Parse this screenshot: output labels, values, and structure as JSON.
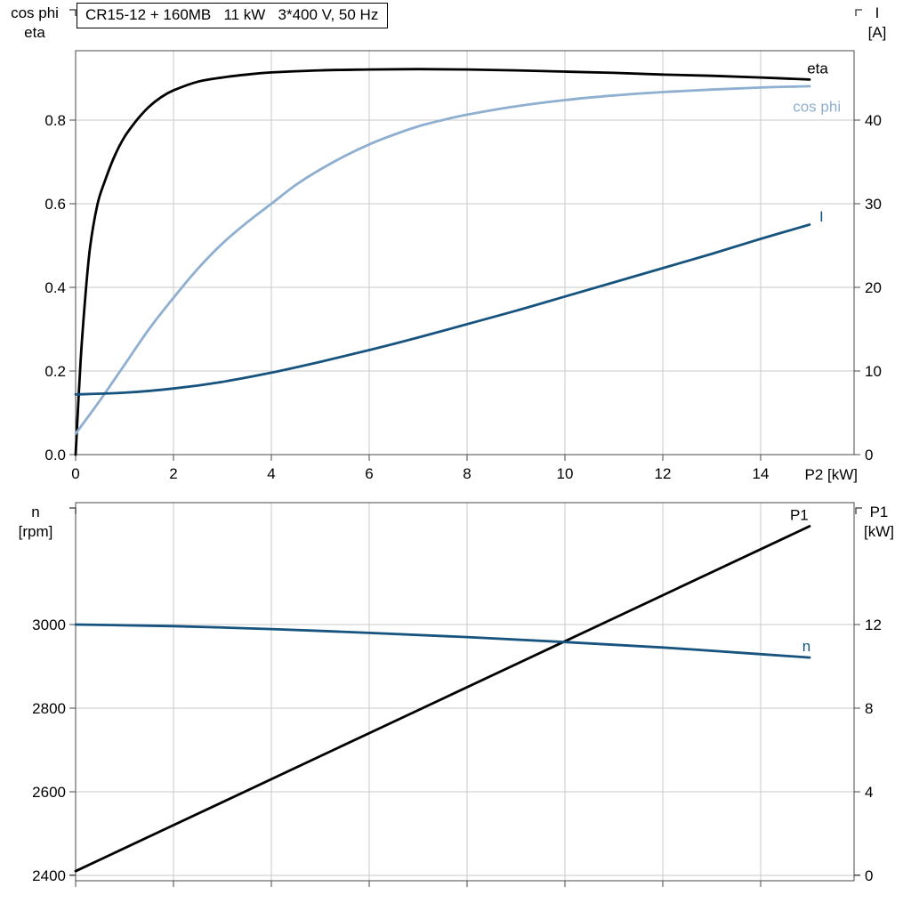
{
  "colors": {
    "black": "#000000",
    "lightblue": "#8fafd0",
    "darkblue": "#16537e",
    "grid": "#c9c9c9",
    "frame": "#4a4a4a",
    "text": "#000000",
    "background": "#ffffff"
  },
  "chart_data": [
    {
      "type": "line",
      "title": "CR15-12 + 160MB   11 kW   3*400 V, 50 Hz",
      "xlabel": "P2 [kW]",
      "xlim": [
        0,
        15.91
      ],
      "show_x_tick_labels": true,
      "x_ticks": [
        {
          "v": 0,
          "label": "0"
        },
        {
          "v": 2,
          "label": "2"
        },
        {
          "v": 4,
          "label": "4"
        },
        {
          "v": 6,
          "label": "6"
        },
        {
          "v": 8,
          "label": "8"
        },
        {
          "v": 10,
          "label": "10"
        },
        {
          "v": 12,
          "label": "12"
        },
        {
          "v": 14,
          "label": "14"
        }
      ],
      "axes": {
        "left": {
          "title_lines": [
            "cos phi",
            "eta"
          ],
          "lim": [
            0,
            0.966
          ],
          "ticks": [
            {
              "v": 0,
              "label": "0.0"
            },
            {
              "v": 0.2,
              "label": "0.2"
            },
            {
              "v": 0.4,
              "label": "0.4"
            },
            {
              "v": 0.6,
              "label": "0.6"
            },
            {
              "v": 0.8,
              "label": "0.8"
            }
          ]
        },
        "right": {
          "title_lines": [
            "I",
            "[A]"
          ],
          "lim": [
            0,
            48.3
          ],
          "ticks": [
            {
              "v": 0,
              "label": "0"
            },
            {
              "v": 10,
              "label": "10"
            },
            {
              "v": 20,
              "label": "20"
            },
            {
              "v": 30,
              "label": "30"
            },
            {
              "v": 40,
              "label": "40"
            }
          ]
        }
      },
      "series": [
        {
          "name": "eta",
          "axis": "left",
          "color": "black",
          "x": [
            0,
            0.1,
            0.2,
            0.3,
            0.45,
            0.6,
            0.8,
            1,
            1.25,
            1.5,
            1.75,
            2,
            2.5,
            3,
            3.5,
            4,
            5,
            6,
            7,
            8,
            9,
            10,
            11,
            12,
            13,
            14,
            15
          ],
          "y": [
            0,
            0.22,
            0.38,
            0.5,
            0.6,
            0.655,
            0.715,
            0.76,
            0.8,
            0.832,
            0.855,
            0.871,
            0.892,
            0.902,
            0.909,
            0.914,
            0.919,
            0.921,
            0.922,
            0.921,
            0.919,
            0.916,
            0.913,
            0.909,
            0.906,
            0.902,
            0.897
          ],
          "label": {
            "text": "eta",
            "x": 14.95,
            "y": 0.912
          }
        },
        {
          "name": "cos phi",
          "axis": "left",
          "color": "lightblue",
          "x": [
            0,
            0.5,
            1,
            1.5,
            2,
            2.5,
            3,
            3.5,
            4,
            4.5,
            5,
            5.5,
            6,
            6.5,
            7,
            7.5,
            8,
            9,
            10,
            11,
            12,
            13,
            14,
            15
          ],
          "y": [
            0.05,
            0.13,
            0.215,
            0.3,
            0.375,
            0.445,
            0.505,
            0.555,
            0.6,
            0.645,
            0.682,
            0.714,
            0.742,
            0.765,
            0.785,
            0.8,
            0.813,
            0.833,
            0.848,
            0.859,
            0.867,
            0.873,
            0.878,
            0.881
          ],
          "label": {
            "text": "cos phi",
            "x": 14.66,
            "y": 0.82
          }
        },
        {
          "name": "I",
          "axis": "right",
          "color": "darkblue",
          "x": [
            0,
            1,
            2,
            3,
            4,
            5,
            6,
            7,
            8,
            9,
            10,
            11,
            12,
            13,
            14,
            15
          ],
          "y": [
            7.2,
            7.4,
            7.9,
            8.7,
            9.8,
            11.1,
            12.5,
            14,
            15.6,
            17.2,
            18.9,
            20.6,
            22.3,
            24,
            25.8,
            27.5
          ],
          "label": {
            "text": "I",
            "x": 15.2,
            "y": 27.9
          }
        }
      ]
    },
    {
      "type": "line",
      "title": "",
      "xlabel": "",
      "xlim": [
        0,
        15.91
      ],
      "show_x_tick_labels": false,
      "x_ticks": [
        {
          "v": 0
        },
        {
          "v": 2
        },
        {
          "v": 4
        },
        {
          "v": 6
        },
        {
          "v": 8
        },
        {
          "v": 10
        },
        {
          "v": 12
        },
        {
          "v": 14
        }
      ],
      "axes": {
        "left": {
          "title_lines": [
            "n",
            "[rpm]"
          ],
          "lim": [
            2387,
            3291.5
          ],
          "ticks": [
            {
              "v": 2400,
              "label": "2400"
            },
            {
              "v": 2600,
              "label": "2600"
            },
            {
              "v": 2800,
              "label": "2800"
            },
            {
              "v": 3000,
              "label": "3000"
            }
          ]
        },
        "right": {
          "title_lines": [
            "P1",
            "[kW]"
          ],
          "lim": [
            -0.26,
            17.83
          ],
          "ticks": [
            {
              "v": 0,
              "label": "0"
            },
            {
              "v": 4,
              "label": "4"
            },
            {
              "v": 8,
              "label": "8"
            },
            {
              "v": 12,
              "label": "12"
            }
          ]
        }
      },
      "series": [
        {
          "name": "P1",
          "axis": "right",
          "color": "black",
          "x": [
            0,
            3,
            6,
            9,
            12,
            15
          ],
          "y": [
            0.2,
            3.5,
            6.8,
            10.1,
            13.4,
            16.7
          ],
          "label": {
            "text": "P1",
            "x": 14.6,
            "y": 17.0
          }
        },
        {
          "name": "n",
          "axis": "left",
          "color": "darkblue",
          "x": [
            0,
            2,
            4,
            6,
            8,
            10,
            12,
            14,
            15
          ],
          "y": [
            3000,
            2996,
            2989,
            2980,
            2970,
            2958,
            2945,
            2929,
            2921
          ],
          "label": {
            "text": "n",
            "x": 14.85,
            "y": 2936
          }
        }
      ]
    }
  ]
}
